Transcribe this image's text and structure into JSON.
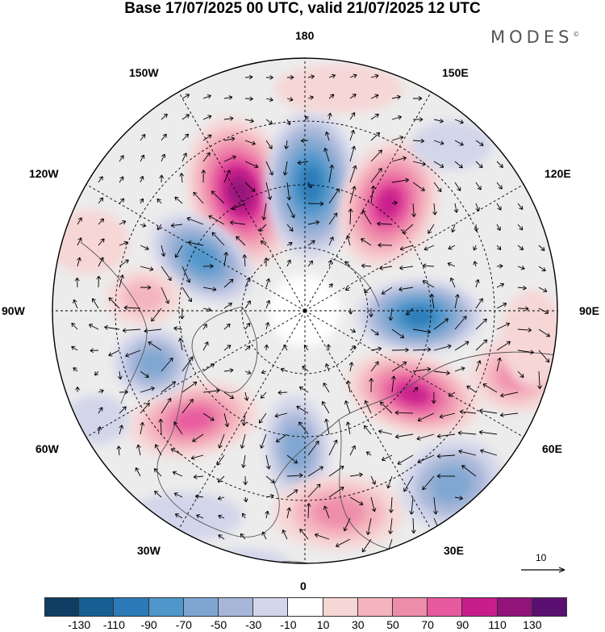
{
  "title": "Base 17/07/2025 00 UTC, valid 21/07/2025 12 UTC",
  "brand": "MODES",
  "brand_mark": "©",
  "longitude_labels": {
    "top": "180",
    "bottom": "0",
    "left": "90W",
    "right": "90E",
    "upper_left_1": "150W",
    "upper_left_2": "120W",
    "upper_right_1": "150E",
    "upper_right_2": "120E",
    "lower_left_1": "60W",
    "lower_left_2": "30W",
    "lower_right_1": "60E",
    "lower_right_2": "30E"
  },
  "reference_vector": {
    "label": "10"
  },
  "colorbar": {
    "colors": [
      "#0e3e63",
      "#155f92",
      "#2c7ab7",
      "#4f96ca",
      "#7ea6d1",
      "#a7b6d8",
      "#d3d5ea",
      "#ffffff",
      "#f7d6d6",
      "#f4b4bd",
      "#ee8cab",
      "#e85a9f",
      "#c81e8c",
      "#92137a",
      "#5a1070"
    ],
    "ticks": [
      "-130",
      "-110",
      "-90",
      "-70",
      "-50",
      "-30",
      "-10",
      "10",
      "30",
      "50",
      "70",
      "90",
      "110",
      "130"
    ]
  },
  "map": {
    "type": "polar stereographic anomaly field",
    "anomalies": [
      {
        "sign": "positive",
        "level": 110,
        "region": "near 150W"
      },
      {
        "sign": "negative",
        "level": -90,
        "region": "near 180"
      },
      {
        "sign": "positive",
        "level": 90,
        "region": "near 150E"
      },
      {
        "sign": "negative",
        "level": -70,
        "region": "near 120W"
      },
      {
        "sign": "negative",
        "level": -90,
        "region": "near 90E"
      },
      {
        "sign": "positive",
        "level": 90,
        "region": "near 60E"
      },
      {
        "sign": "positive",
        "level": 70,
        "region": "near 60W"
      },
      {
        "sign": "negative",
        "level": -50,
        "region": "near 75W"
      },
      {
        "sign": "negative",
        "level": -50,
        "region": "near 0"
      },
      {
        "sign": "positive",
        "level": 50,
        "region": "near 15E"
      },
      {
        "sign": "negative",
        "level": -50,
        "region": "near 45E"
      },
      {
        "sign": "positive",
        "level": 30,
        "region": "near 90W"
      },
      {
        "sign": "positive",
        "level": 50,
        "region": "near 120E"
      }
    ]
  }
}
